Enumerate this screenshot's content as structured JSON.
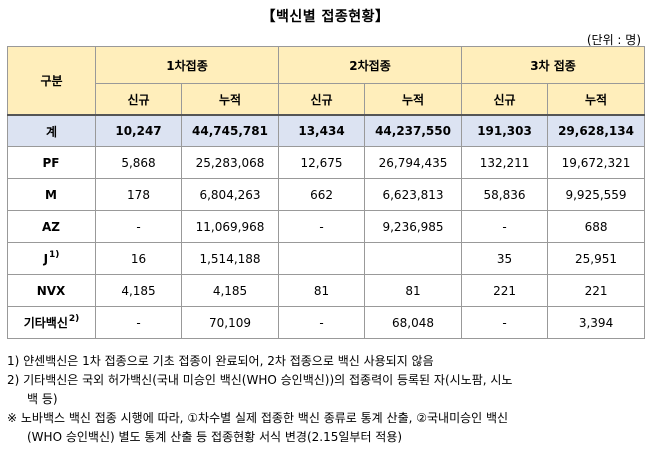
{
  "title": "【백신별 접종현황】",
  "unit": "(단위 : 명)",
  "header": {
    "category": "구분",
    "groups": [
      "1차접종",
      "2차접종",
      "3차 접종"
    ],
    "sub": [
      "신규",
      "누적",
      "신규",
      "누적",
      "신규",
      "누적"
    ]
  },
  "total": {
    "label": "계",
    "cells": [
      "10,247",
      "44,745,781",
      "13,434",
      "44,237,550",
      "191,303",
      "29,628,134"
    ]
  },
  "rows": [
    {
      "label": "PF",
      "sup": "",
      "cells": [
        "5,868",
        "25,283,068",
        "12,675",
        "26,794,435",
        "132,211",
        "19,672,321"
      ]
    },
    {
      "label": "M",
      "sup": "",
      "cells": [
        "178",
        "6,804,263",
        "662",
        "6,623,813",
        "58,836",
        "9,925,559"
      ]
    },
    {
      "label": "AZ",
      "sup": "",
      "cells": [
        "-",
        "11,069,968",
        "-",
        "9,236,985",
        "-",
        "688"
      ]
    },
    {
      "label": "J",
      "sup": "1)",
      "cells": [
        "16",
        "1,514,188",
        "",
        "",
        "35",
        "25,951"
      ]
    },
    {
      "label": "NVX",
      "sup": "",
      "cells": [
        "4,185",
        "4,185",
        "81",
        "81",
        "221",
        "221"
      ]
    },
    {
      "label": "기타백신",
      "sup": "2)",
      "cells": [
        "-",
        "70,109",
        "-",
        "68,048",
        "-",
        "3,394"
      ]
    }
  ],
  "notes": {
    "n1": "1) 얀센백신은 1차 접종으로 기초 접종이 완료되어, 2차 접종으로 백신 사용되지 않음",
    "n2a": "2) 기타백신은 국외 허가백신(국내 미승인 백신(WHO 승인백신))의 접종력이 등록된 자(시노팜, 시노",
    "n2b": "백 등)",
    "n3a": "※ 노바백스 백신 접종 시행에 따라, ①차수별 실제 접종한 백신 종류로 통계 산출, ②국내미승인 백신",
    "n3b": "(WHO 승인백신) 별도 통계 산출 등 접종현황 서식 변경(2.15일부터 적용)"
  }
}
